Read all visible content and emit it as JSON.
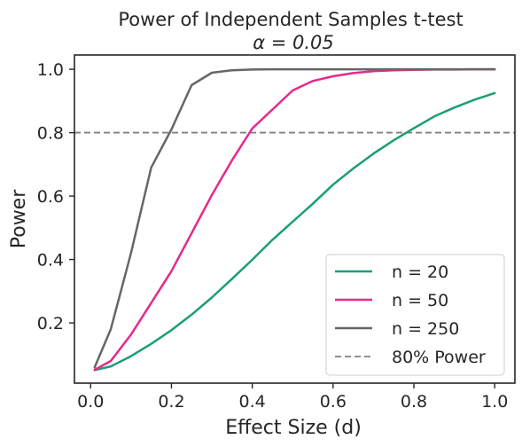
{
  "chart_data": {
    "type": "line",
    "title": "Power of Independent Samples t-test",
    "subtitle": "α = 0.05",
    "xlabel": "Effect Size (d)",
    "ylabel": "Power",
    "xlim": [
      -0.04,
      1.05
    ],
    "ylim": [
      0.01,
      1.045
    ],
    "xticks": [
      0.0,
      0.2,
      0.4,
      0.6,
      0.8,
      1.0
    ],
    "xtick_labels": [
      "0.0",
      "0.2",
      "0.4",
      "0.6",
      "0.8",
      "1.0"
    ],
    "yticks": [
      0.2,
      0.4,
      0.6,
      0.8,
      1.0
    ],
    "ytick_labels": [
      "0.2",
      "0.4",
      "0.6",
      "0.8",
      "1.0"
    ],
    "grid": false,
    "legend_position": "lower-right",
    "x": [
      0.01,
      0.05,
      0.1,
      0.15,
      0.2,
      0.25,
      0.3,
      0.35,
      0.4,
      0.45,
      0.5,
      0.55,
      0.6,
      0.65,
      0.7,
      0.75,
      0.8,
      0.85,
      0.9,
      0.95,
      1.0
    ],
    "series": [
      {
        "name": "n = 20",
        "color": "#1b9e77",
        "values": [
          0.051,
          0.063,
          0.095,
          0.134,
          0.177,
          0.226,
          0.28,
          0.339,
          0.399,
          0.462,
          0.519,
          0.576,
          0.636,
          0.687,
          0.734,
          0.776,
          0.814,
          0.851,
          0.879,
          0.904,
          0.925
        ]
      },
      {
        "name": "n = 50",
        "color": "#e7298a",
        "values": [
          0.052,
          0.08,
          0.163,
          0.263,
          0.363,
          0.483,
          0.603,
          0.713,
          0.813,
          0.873,
          0.933,
          0.963,
          0.978,
          0.988,
          0.994,
          0.997,
          0.998,
          0.999,
          0.999,
          1.0,
          1.0
        ]
      },
      {
        "name": "n = 250",
        "color": "#666666",
        "values": [
          0.06,
          0.18,
          0.42,
          0.69,
          0.81,
          0.95,
          0.989,
          0.997,
          0.999,
          1.0,
          1.0,
          1.0,
          1.0,
          1.0,
          1.0,
          1.0,
          1.0,
          1.0,
          1.0,
          1.0,
          1.0
        ]
      }
    ],
    "reference_line": {
      "name": "80% Power",
      "y": 0.8,
      "color": "#808080",
      "style": "dashed"
    }
  }
}
